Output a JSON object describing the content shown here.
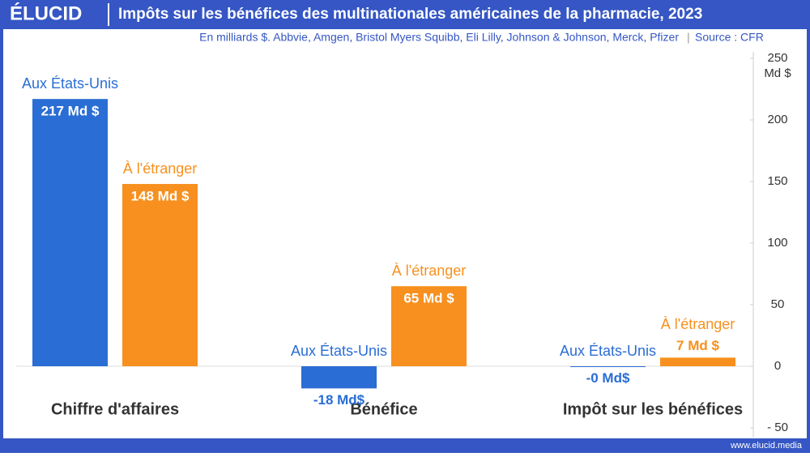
{
  "brand": "ÉLUCID",
  "footer": "www.elucid.media",
  "chart_data": {
    "type": "bar",
    "title": "Impôts sur les bénéfices des multinationales américaines de la pharmacie, 2023",
    "subtitle": "En milliards $. Abbvie, Amgen, Bristol Myers Squibb, Eli Lilly, Johnson & Johnson, Merck, Pfizer",
    "source": "Source : CFR",
    "y_unit": "Md $",
    "categories": [
      "Chiffre d'affaires",
      "Bénéfice",
      "Impôt sur les bénéfices"
    ],
    "series": [
      {
        "name": "Aux États-Unis",
        "color": "#2a6dd4",
        "values": [
          217,
          -18,
          -0.2
        ],
        "value_labels": [
          "217 Md $",
          "-18 Md$",
          "-0 Md$"
        ]
      },
      {
        "name": "À l'étranger",
        "color": "#f7901e",
        "values": [
          148,
          65,
          7
        ],
        "value_labels": [
          "148 Md $",
          "65 Md $",
          "7 Md $"
        ]
      }
    ],
    "ylim": [
      -50,
      250
    ],
    "yticks": [
      {
        "value": -50,
        "label": "- 50"
      },
      0,
      50,
      100,
      150,
      200,
      250
    ],
    "y_axis_side": "right"
  }
}
